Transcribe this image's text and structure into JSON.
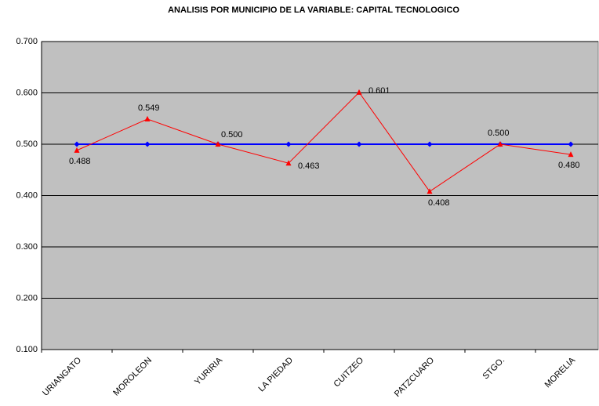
{
  "chart_data": {
    "type": "line",
    "title": "ANALISIS POR MUNICIPIO DE LA VARIABLE: CAPITAL TECNOLOGICO",
    "categories": [
      "URIANGATO",
      "MOROLEON",
      "YURIRIA",
      "LA PIEDAD",
      "CUITZEO",
      "PATZCUARO",
      "STGO.",
      "MORELIA"
    ],
    "series": [
      {
        "color": "#0000ff",
        "marker": "diamond",
        "values": [
          0.5,
          0.5,
          0.5,
          0.5,
          0.5,
          0.5,
          0.5,
          0.5
        ]
      },
      {
        "color": "#ff0000",
        "marker": "triangle",
        "values": [
          0.488,
          0.549,
          0.5,
          0.463,
          0.601,
          0.408,
          0.5,
          0.48
        ],
        "value_labels": [
          "0.488",
          "0.549",
          "0.500",
          "0.463",
          "0.601",
          "0.408",
          "0.500",
          "0.480"
        ]
      }
    ],
    "ylim": [
      0.1,
      0.7
    ],
    "yticks": [
      {
        "value": 0.1,
        "label": "0.100"
      },
      {
        "value": 0.2,
        "label": "0.200"
      },
      {
        "value": 0.3,
        "label": "0.300"
      },
      {
        "value": 0.4,
        "label": "0.400"
      },
      {
        "value": 0.5,
        "label": "0.500"
      },
      {
        "value": 0.6,
        "label": "0.600"
      },
      {
        "value": 0.7,
        "label": "0.700"
      }
    ],
    "grid": true,
    "plot_background": "#c0c0c0"
  }
}
